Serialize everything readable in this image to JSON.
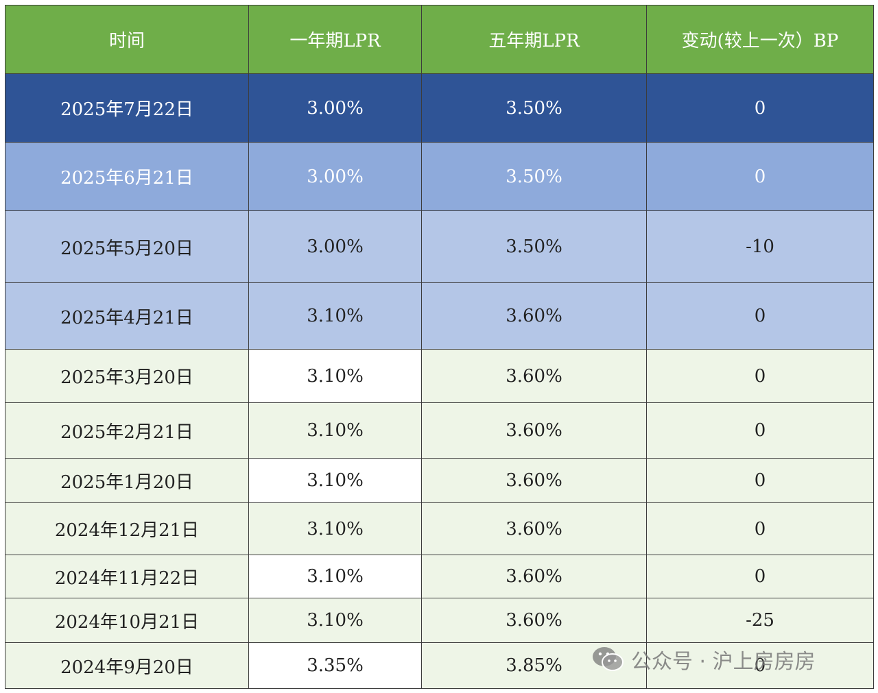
{
  "table": {
    "headers": [
      "时间",
      "一年期LPR",
      "五年期LPR",
      "变动(较上一次）BP"
    ],
    "rows": [
      {
        "date": "2025年7月22日",
        "lpr1": "3.00%",
        "lpr5": "3.50%",
        "bp": "0"
      },
      {
        "date": "2025年6月21日",
        "lpr1": "3.00%",
        "lpr5": "3.50%",
        "bp": "0"
      },
      {
        "date": "2025年5月20日",
        "lpr1": "3.00%",
        "lpr5": "3.50%",
        "bp": "-10"
      },
      {
        "date": "2025年4月21日",
        "lpr1": "3.10%",
        "lpr5": "3.60%",
        "bp": "0"
      },
      {
        "date": "2025年3月20日",
        "lpr1": "3.10%",
        "lpr5": "3.60%",
        "bp": "0"
      },
      {
        "date": "2025年2月21日",
        "lpr1": "3.10%",
        "lpr5": "3.60%",
        "bp": "0"
      },
      {
        "date": "2025年1月20日",
        "lpr1": "3.10%",
        "lpr5": "3.60%",
        "bp": "0"
      },
      {
        "date": "2024年12月21日",
        "lpr1": "3.10%",
        "lpr5": "3.60%",
        "bp": "0"
      },
      {
        "date": "2024年11月22日",
        "lpr1": "3.10%",
        "lpr5": "3.60%",
        "bp": "0"
      },
      {
        "date": "2024年10月21日",
        "lpr1": "3.10%",
        "lpr5": "3.60%",
        "bp": "-25"
      },
      {
        "date": "2024年9月20日",
        "lpr1": "3.35%",
        "lpr5": "3.85%",
        "bp": "0"
      }
    ]
  },
  "watermark": {
    "text": "公众号 · 沪上房房房",
    "icon": "wechat-icon"
  },
  "colors": {
    "header_green": "#6fae49",
    "row_dark_blue": "#2f5496",
    "row_mid_blue": "#8eaadb",
    "row_light_blue": "#b4c6e7",
    "row_light_green": "#eef5e7"
  }
}
